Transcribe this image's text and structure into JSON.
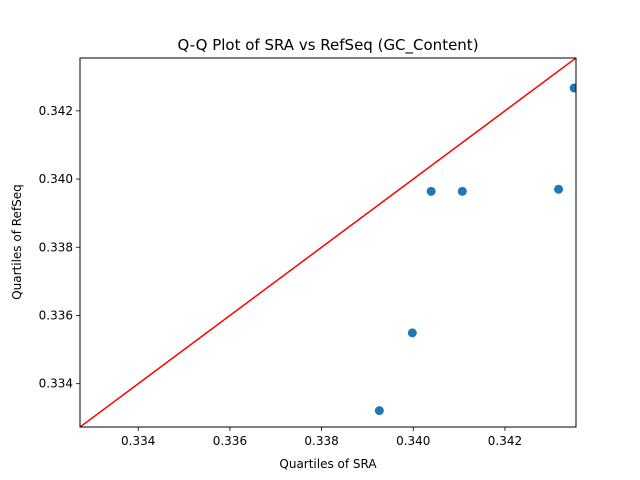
{
  "chart_data": {
    "type": "scatter",
    "title": "Q-Q Plot of SRA vs RefSeq (GC_Content)",
    "xlabel": "Quartiles of SRA",
    "ylabel": "Quartiles of RefSeq",
    "xlim": [
      0.33273,
      0.34355
    ],
    "ylim": [
      0.33273,
      0.34355
    ],
    "xticks": [
      0.334,
      0.336,
      0.338,
      0.34,
      0.342
    ],
    "yticks": [
      0.334,
      0.336,
      0.338,
      0.34,
      0.342
    ],
    "grid": false,
    "series": [
      {
        "type": "scatter",
        "color": "#1f77b4",
        "points": [
          {
            "x": 0.33926,
            "y": 0.33321
          },
          {
            "x": 0.33998,
            "y": 0.33549
          },
          {
            "x": 0.34039,
            "y": 0.33964
          },
          {
            "x": 0.34107,
            "y": 0.33964
          },
          {
            "x": 0.34317,
            "y": 0.3397
          },
          {
            "x": 0.34351,
            "y": 0.34267
          }
        ]
      },
      {
        "type": "line",
        "color": "#ff0000",
        "points": [
          {
            "x": 0.33273,
            "y": 0.33273
          },
          {
            "x": 0.34355,
            "y": 0.34355
          }
        ]
      }
    ]
  }
}
